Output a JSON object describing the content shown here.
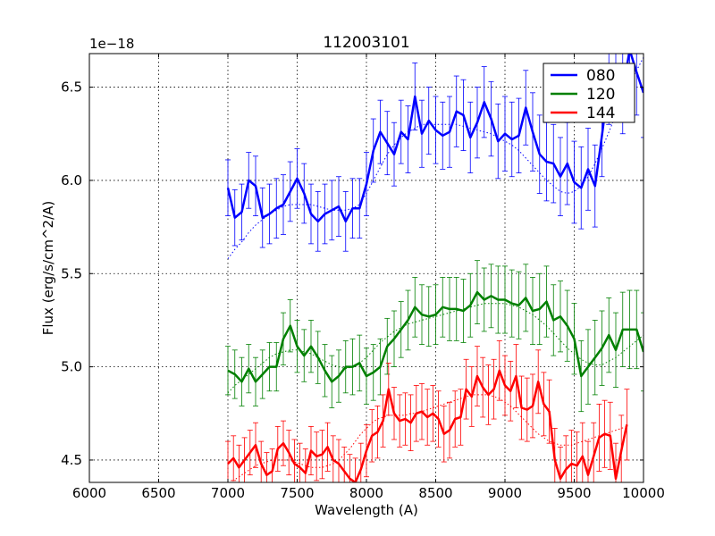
{
  "chart_data": {
    "type": "line",
    "title": "112003101",
    "xlabel": "Wavelength (A)",
    "ylabel": "Flux (erg/s/cm^2/A)",
    "y_offset_label": "1e−18",
    "xlim": [
      6000,
      10000
    ],
    "ylim": [
      4.38,
      6.68
    ],
    "x_ticks": [
      6000,
      6500,
      7000,
      7500,
      8000,
      8500,
      9000,
      9500,
      10000
    ],
    "y_ticks": [
      4.5,
      5.0,
      5.5,
      6.0,
      6.5
    ],
    "x_tick_labels": [
      "6000",
      "6500",
      "7000",
      "7500",
      "8000",
      "8500",
      "9000",
      "9500",
      "10000"
    ],
    "y_tick_labels": [
      "4.5",
      "5.0",
      "5.5",
      "6.0",
      "6.5"
    ],
    "grid": true,
    "legend_position": "top-right",
    "x": [
      7000,
      7050,
      7100,
      7150,
      7200,
      7250,
      7300,
      7350,
      7400,
      7450,
      7500,
      7550,
      7600,
      7650,
      7700,
      7750,
      7800,
      7850,
      7900,
      7950,
      8000,
      8050,
      8100,
      8150,
      8200,
      8250,
      8300,
      8350,
      8400,
      8450,
      8500,
      8550,
      8600,
      8650,
      8700,
      8750,
      8800,
      8850,
      8900,
      8950,
      9000,
      9050,
      9100,
      9150,
      9200,
      9250,
      9300,
      9350,
      9400,
      9450,
      9500,
      9550,
      9600,
      9650,
      9700,
      9750,
      9800,
      9850,
      9900,
      9950,
      10000
    ],
    "series": [
      {
        "name": "080",
        "color": "#0000ff",
        "values": [
          5.96,
          5.8,
          5.83,
          6.0,
          5.97,
          5.8,
          5.82,
          5.85,
          5.87,
          5.94,
          6.01,
          5.93,
          5.82,
          5.78,
          5.82,
          5.84,
          5.86,
          5.78,
          5.85,
          5.85,
          5.98,
          6.16,
          6.26,
          6.2,
          6.14,
          6.26,
          6.22,
          6.45,
          6.25,
          6.32,
          6.27,
          6.24,
          6.26,
          6.37,
          6.35,
          6.23,
          6.31,
          6.42,
          6.33,
          6.21,
          6.25,
          6.22,
          6.24,
          6.39,
          6.26,
          6.14,
          6.1,
          6.09,
          6.02,
          6.09,
          5.99,
          5.96,
          6.06,
          5.97,
          6.24,
          6.53,
          6.57,
          6.48,
          6.7,
          6.58,
          6.47
        ],
        "errors": [
          0.15,
          0.15,
          0.15,
          0.15,
          0.16,
          0.16,
          0.16,
          0.16,
          0.16,
          0.16,
          0.16,
          0.16,
          0.16,
          0.16,
          0.16,
          0.16,
          0.16,
          0.16,
          0.16,
          0.16,
          0.17,
          0.17,
          0.17,
          0.17,
          0.17,
          0.17,
          0.18,
          0.18,
          0.18,
          0.18,
          0.18,
          0.18,
          0.19,
          0.19,
          0.19,
          0.19,
          0.19,
          0.19,
          0.2,
          0.2,
          0.2,
          0.2,
          0.2,
          0.2,
          0.21,
          0.21,
          0.21,
          0.21,
          0.21,
          0.22,
          0.22,
          0.22,
          0.22,
          0.22,
          0.22,
          0.23,
          0.23,
          0.23,
          0.23,
          0.23,
          0.24
        ],
        "model": [
          5.58,
          5.63,
          5.67,
          5.72,
          5.76,
          5.79,
          5.82,
          5.84,
          5.86,
          5.87,
          5.87,
          5.87,
          5.87,
          5.86,
          5.85,
          5.84,
          5.84,
          5.84,
          5.85,
          5.87,
          5.93,
          6.0,
          6.07,
          6.14,
          6.19,
          6.23,
          6.26,
          6.28,
          6.3,
          6.3,
          6.3,
          6.3,
          6.3,
          6.3,
          6.29,
          6.28,
          6.27,
          6.26,
          6.25,
          6.23,
          6.21,
          6.19,
          6.16,
          6.12,
          6.08,
          6.04,
          6.0,
          5.97,
          5.94,
          5.93,
          5.94,
          5.97,
          6.02,
          6.09,
          6.17,
          6.26,
          6.35,
          6.44,
          6.52,
          6.59,
          6.66
        ]
      },
      {
        "name": "120",
        "color": "#008000",
        "values": [
          4.98,
          4.96,
          4.92,
          4.99,
          4.92,
          4.96,
          5.0,
          5.0,
          5.15,
          5.22,
          5.11,
          5.06,
          5.11,
          5.05,
          4.98,
          4.92,
          4.95,
          5.0,
          5.0,
          5.02,
          4.95,
          4.97,
          5.0,
          5.11,
          5.15,
          5.2,
          5.25,
          5.32,
          5.28,
          5.27,
          5.28,
          5.32,
          5.31,
          5.31,
          5.3,
          5.33,
          5.4,
          5.36,
          5.38,
          5.36,
          5.36,
          5.34,
          5.33,
          5.37,
          5.3,
          5.31,
          5.35,
          5.25,
          5.27,
          5.22,
          5.15,
          4.95,
          5.0,
          5.05,
          5.1,
          5.17,
          5.09,
          5.2,
          5.2,
          5.2,
          5.08
        ],
        "errors": [
          0.13,
          0.13,
          0.13,
          0.13,
          0.13,
          0.13,
          0.13,
          0.13,
          0.14,
          0.14,
          0.14,
          0.14,
          0.14,
          0.14,
          0.14,
          0.14,
          0.14,
          0.14,
          0.15,
          0.15,
          0.15,
          0.15,
          0.15,
          0.15,
          0.15,
          0.15,
          0.16,
          0.16,
          0.16,
          0.16,
          0.16,
          0.16,
          0.17,
          0.17,
          0.17,
          0.17,
          0.17,
          0.17,
          0.17,
          0.18,
          0.18,
          0.18,
          0.18,
          0.18,
          0.18,
          0.19,
          0.19,
          0.19,
          0.19,
          0.19,
          0.19,
          0.19,
          0.2,
          0.2,
          0.2,
          0.2,
          0.2,
          0.2,
          0.21,
          0.21,
          0.21
        ],
        "model": [
          4.86,
          4.9,
          4.93,
          4.96,
          4.99,
          5.02,
          5.05,
          5.07,
          5.08,
          5.09,
          5.09,
          5.08,
          5.07,
          5.05,
          5.03,
          5.01,
          5.0,
          4.99,
          5.0,
          5.02,
          5.05,
          5.09,
          5.13,
          5.16,
          5.19,
          5.21,
          5.23,
          5.24,
          5.25,
          5.26,
          5.27,
          5.28,
          5.29,
          5.3,
          5.31,
          5.32,
          5.33,
          5.34,
          5.34,
          5.34,
          5.34,
          5.33,
          5.32,
          5.3,
          5.28,
          5.25,
          5.22,
          5.18,
          5.14,
          5.1,
          5.07,
          5.04,
          5.02,
          5.01,
          5.01,
          5.03,
          5.05,
          5.08,
          5.11,
          5.14,
          5.17
        ]
      },
      {
        "name": "144",
        "color": "#ff0000",
        "values": [
          4.48,
          4.51,
          4.46,
          4.5,
          4.54,
          4.58,
          4.48,
          4.42,
          4.44,
          4.56,
          4.59,
          4.54,
          4.48,
          4.46,
          4.43,
          4.55,
          4.52,
          4.53,
          4.57,
          4.5,
          4.48,
          4.44,
          4.4,
          4.38,
          4.45,
          4.55,
          4.63,
          4.65,
          4.71,
          4.88,
          4.75,
          4.71,
          4.72,
          4.7,
          4.75,
          4.76,
          4.73,
          4.75,
          4.72,
          4.64,
          4.66,
          4.72,
          4.73,
          4.88,
          4.84,
          4.95,
          4.89,
          4.85,
          4.88,
          4.98,
          4.9,
          4.87,
          4.95,
          4.78,
          4.77,
          4.79,
          4.92,
          4.8,
          4.76,
          4.5,
          4.4,
          4.45,
          4.48,
          4.47,
          4.52,
          4.42,
          4.52,
          4.62,
          4.64,
          4.63,
          4.4,
          4.55,
          4.69
        ],
        "errors": [
          0.12,
          0.12,
          0.12,
          0.12,
          0.12,
          0.12,
          0.12,
          0.12,
          0.12,
          0.12,
          0.12,
          0.12,
          0.13,
          0.13,
          0.13,
          0.13,
          0.13,
          0.13,
          0.13,
          0.13,
          0.13,
          0.13,
          0.13,
          0.13,
          0.14,
          0.14,
          0.14,
          0.14,
          0.14,
          0.14,
          0.14,
          0.14,
          0.14,
          0.15,
          0.15,
          0.15,
          0.15,
          0.15,
          0.15,
          0.15,
          0.15,
          0.15,
          0.15,
          0.16,
          0.16,
          0.16,
          0.16,
          0.16,
          0.16,
          0.16,
          0.16,
          0.16,
          0.17,
          0.17,
          0.17,
          0.17,
          0.17,
          0.17,
          0.17,
          0.17,
          0.17,
          0.18,
          0.18,
          0.18,
          0.18,
          0.18,
          0.18,
          0.18,
          0.18,
          0.18,
          0.19,
          0.19,
          0.19
        ],
        "x": [
          7000,
          7040,
          7080,
          7120,
          7160,
          7200,
          7240,
          7280,
          7320,
          7360,
          7400,
          7440,
          7480,
          7520,
          7560,
          7600,
          7640,
          7680,
          7720,
          7760,
          7800,
          7840,
          7880,
          7920,
          7960,
          8000,
          8040,
          8080,
          8120,
          8160,
          8200,
          8240,
          8280,
          8320,
          8360,
          8400,
          8440,
          8480,
          8520,
          8560,
          8600,
          8640,
          8680,
          8720,
          8760,
          8800,
          8840,
          8880,
          8920,
          8960,
          9000,
          9040,
          9080,
          9120,
          9160,
          9200,
          9240,
          9280,
          9320,
          9360,
          9400,
          9440,
          9480,
          9520,
          9560,
          9600,
          9640,
          9680,
          9720,
          9760,
          9800,
          9840,
          9880
        ],
        "model": [
          4.36,
          4.39,
          4.41,
          4.43,
          4.45,
          4.47,
          4.48,
          4.49,
          4.5,
          4.5,
          4.5,
          4.5,
          4.49,
          4.48,
          4.47,
          4.46,
          4.46,
          4.46,
          4.47,
          4.48,
          4.5,
          4.53,
          4.56,
          4.6,
          4.64,
          4.67,
          4.7,
          4.72,
          4.73,
          4.74,
          4.74,
          4.74,
          4.74,
          4.75,
          4.75,
          4.76,
          4.77,
          4.78,
          4.79,
          4.8,
          4.81,
          4.82,
          4.83,
          4.84,
          4.85,
          4.85,
          4.85,
          4.85,
          4.84,
          4.83,
          4.81,
          4.79,
          4.76,
          4.73,
          4.7,
          4.67,
          4.64,
          4.62,
          4.6,
          4.59,
          4.58,
          4.58,
          4.58,
          4.59,
          4.6,
          4.61,
          4.62,
          4.63,
          4.64,
          4.65,
          4.66,
          4.67,
          4.68
        ]
      }
    ]
  }
}
